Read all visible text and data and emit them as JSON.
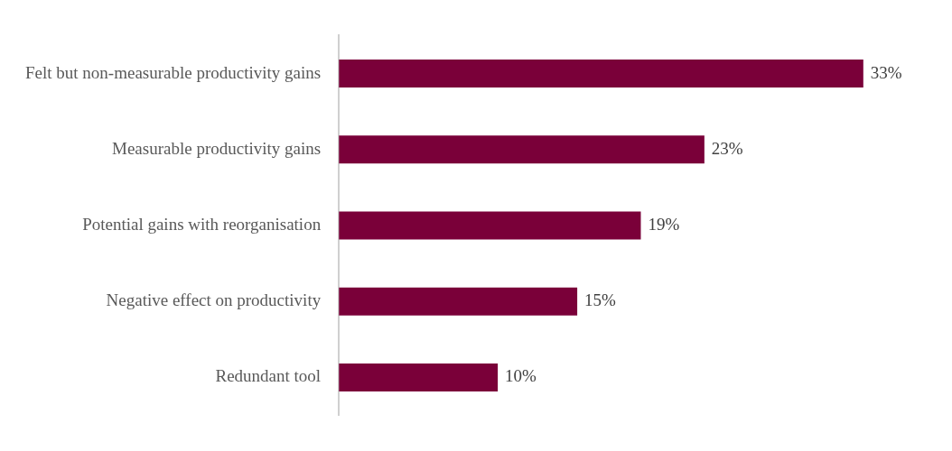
{
  "chart_data": {
    "type": "bar",
    "orientation": "horizontal",
    "categories": [
      "Felt but non-measurable productivity gains",
      "Measurable productivity gains",
      "Potential gains with reorganisation",
      "Negative effect on productivity",
      "Redundant tool"
    ],
    "values": [
      33,
      23,
      19,
      15,
      10
    ],
    "value_labels": [
      "33%",
      "23%",
      "19%",
      "15%",
      "10%"
    ],
    "color": "#7a0039",
    "legend": false
  }
}
